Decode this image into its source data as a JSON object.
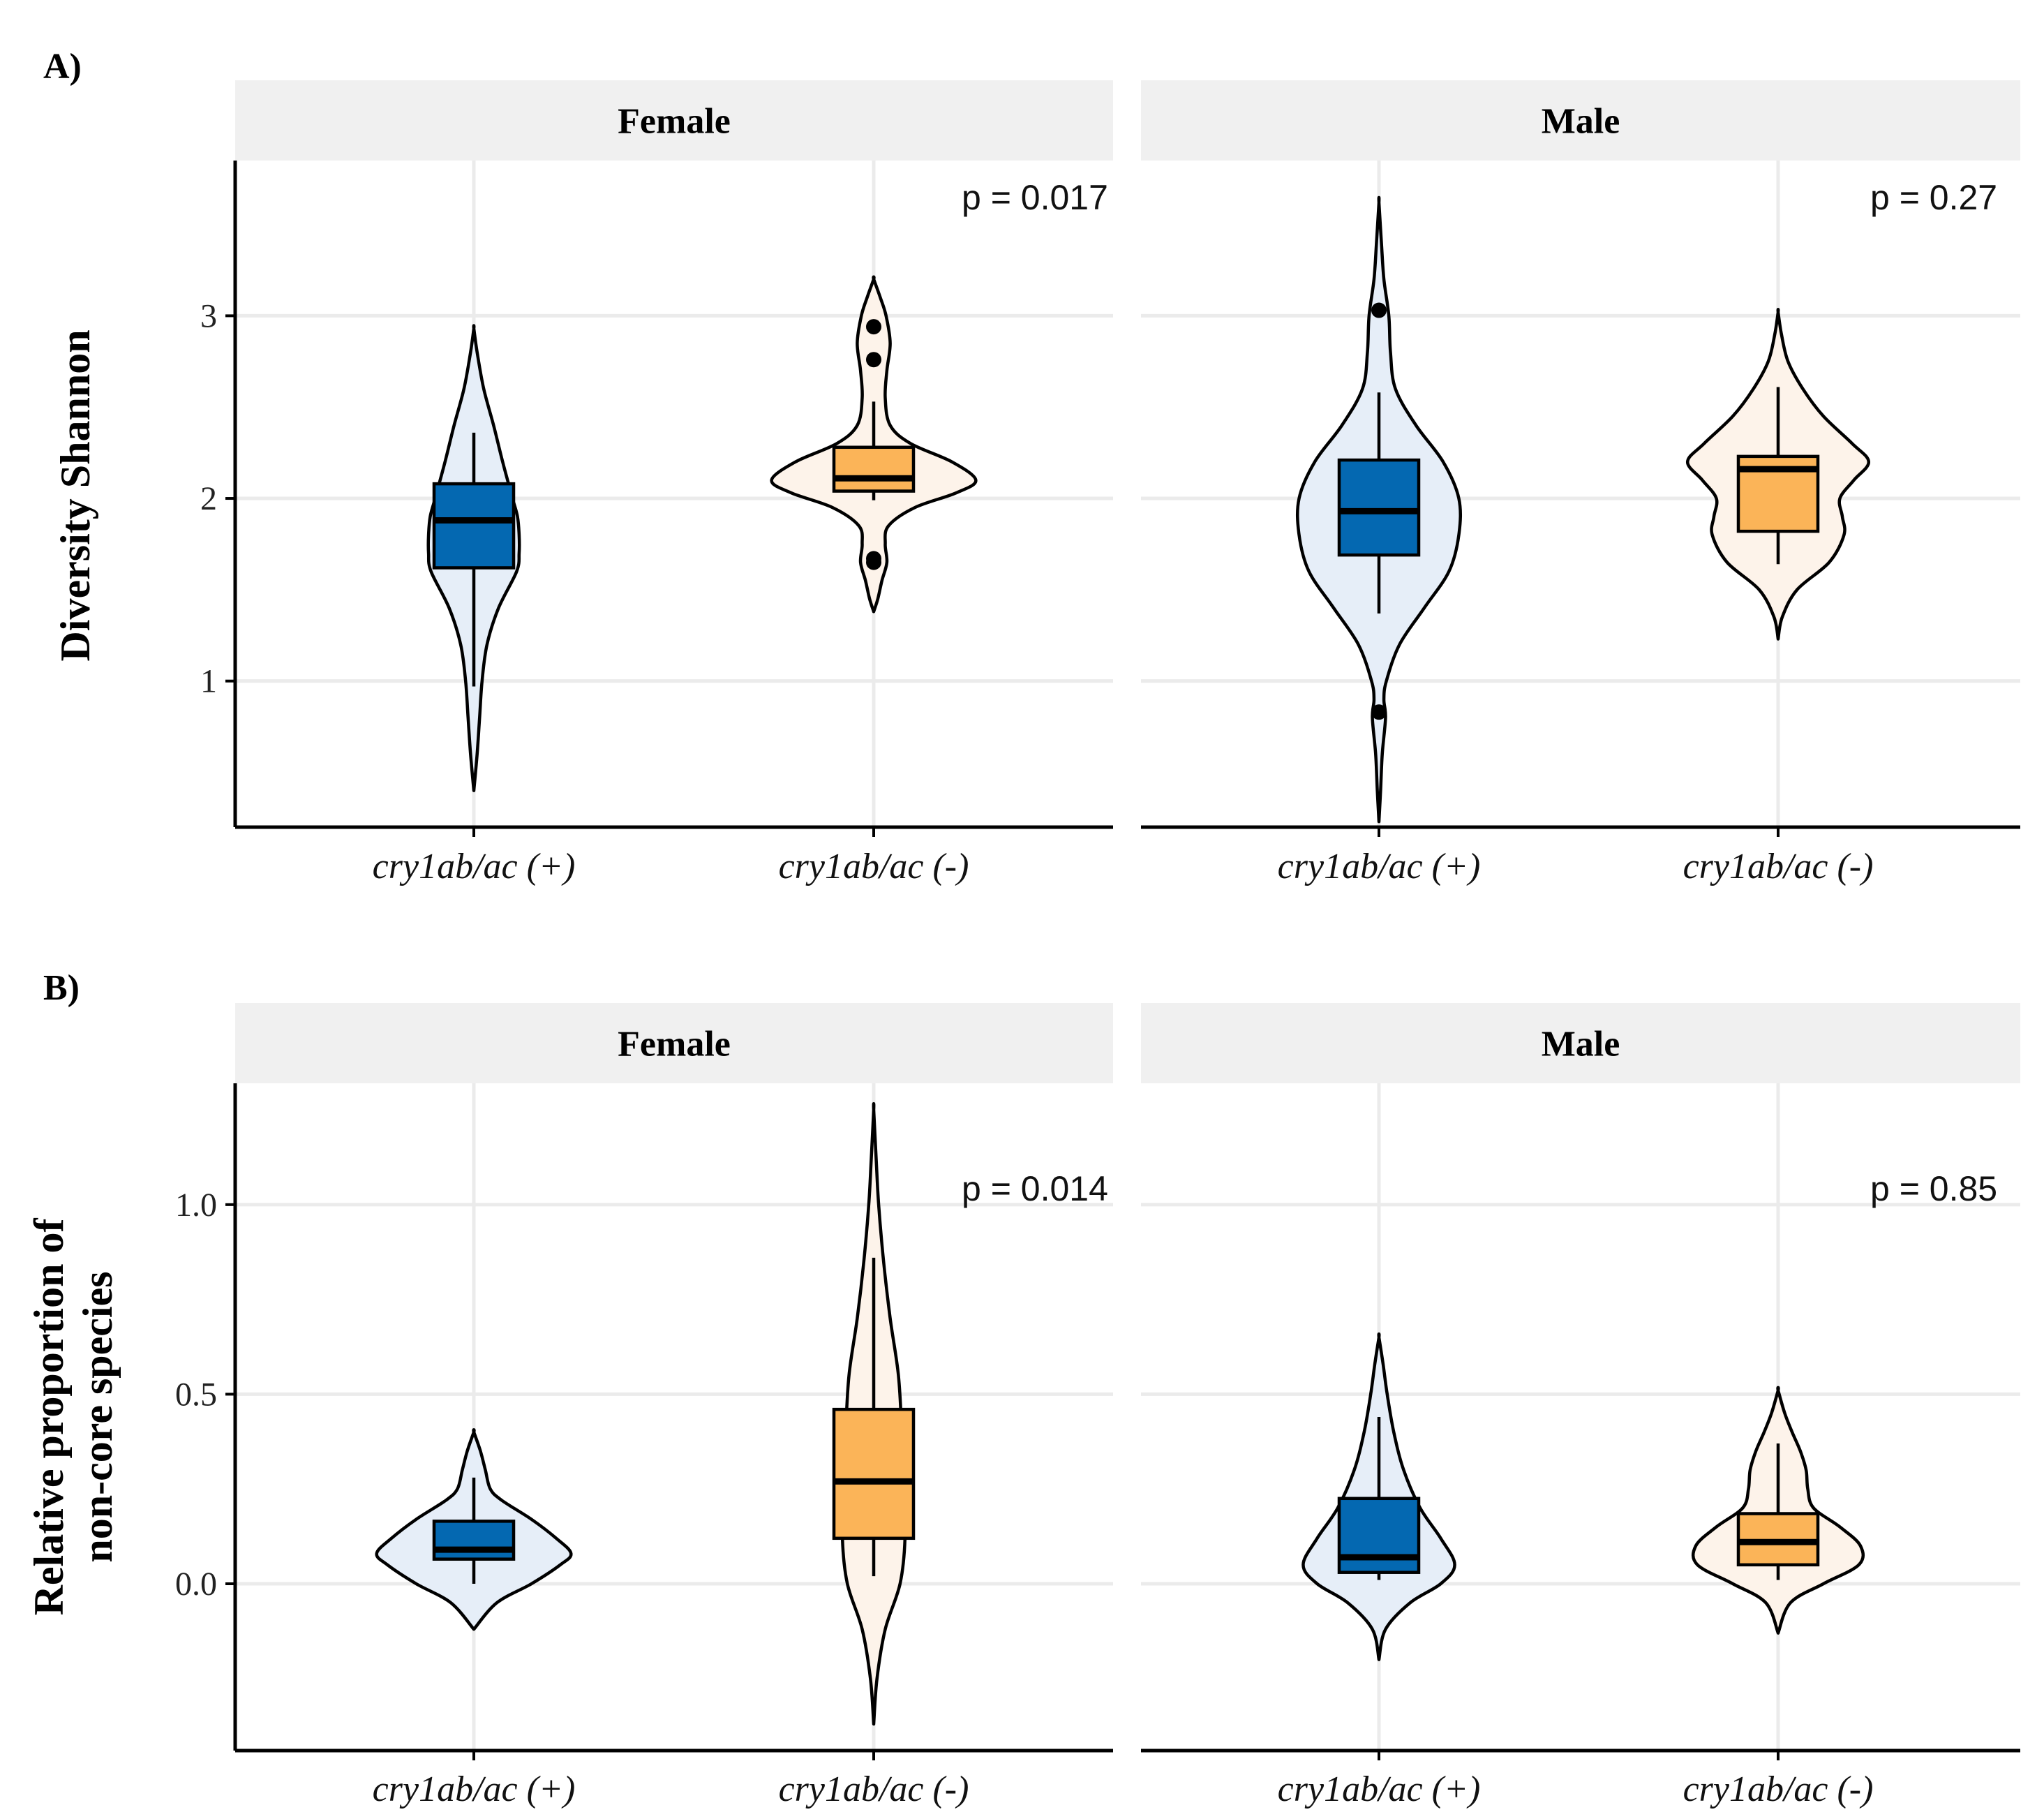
{
  "colors": {
    "plus_box": "#0468b1",
    "plus_violin": "#e6eef8",
    "minus_box": "#fbb458",
    "minus_violin": "#fdf3ea",
    "strip_bg": "#f0f0f0",
    "grid": "#ebebeb",
    "ink": "#000000"
  },
  "chart_data": [
    {
      "type": "violin",
      "panel_label": "A)",
      "ylabel": [
        "Diversity Shannon"
      ],
      "ylim": [
        0.2,
        3.85
      ],
      "yticks": [
        1,
        2,
        3
      ],
      "ytick_labels": [
        "1",
        "2",
        "3"
      ],
      "categories": [
        "cry1ab/ac (+)",
        "cry1ab/ac (-)"
      ],
      "facets": [
        {
          "name": "Female",
          "pvalue": "p = 0.017",
          "groups": [
            {
              "category": "cry1ab/ac (+)",
              "color_key": "plus",
              "box": {
                "lower_whisker": 0.97,
                "q1": 1.62,
                "median": 1.88,
                "q3": 2.08,
                "upper_whisker": 2.36
              },
              "outliers": [],
              "violin": {
                "y": [
                  0.4,
                  0.6,
                  0.8,
                  1.0,
                  1.2,
                  1.4,
                  1.6,
                  1.7,
                  1.8,
                  1.9,
                  2.0,
                  2.2,
                  2.4,
                  2.6,
                  2.8,
                  2.93
                ],
                "hw": [
                  0.0,
                  0.04,
                  0.07,
                  0.1,
                  0.16,
                  0.3,
                  0.52,
                  0.55,
                  0.55,
                  0.53,
                  0.47,
                  0.35,
                  0.24,
                  0.12,
                  0.04,
                  0.0
                ]
              }
            },
            {
              "category": "cry1ab/ac (-)",
              "color_key": "minus",
              "box": {
                "lower_whisker": 1.99,
                "q1": 2.04,
                "median": 2.11,
                "q3": 2.28,
                "upper_whisker": 2.53
              },
              "outliers": [
                2.94,
                2.76,
                1.67,
                1.65
              ],
              "violin": {
                "y": [
                  1.38,
                  1.45,
                  1.55,
                  1.65,
                  1.75,
                  1.85,
                  1.95,
                  2.03,
                  2.1,
                  2.2,
                  2.3,
                  2.4,
                  2.55,
                  2.7,
                  2.85,
                  3.0,
                  3.1,
                  3.2
                ],
                "hw": [
                  0.0,
                  0.05,
                  0.1,
                  0.16,
                  0.14,
                  0.18,
                  0.5,
                  1.0,
                  1.24,
                  0.95,
                  0.45,
                  0.2,
                  0.14,
                  0.16,
                  0.2,
                  0.15,
                  0.08,
                  0.0
                ]
              }
            }
          ]
        },
        {
          "name": "Male",
          "pvalue": "p = 0.27",
          "groups": [
            {
              "category": "cry1ab/ac (+)",
              "color_key": "plus",
              "box": {
                "lower_whisker": 1.37,
                "q1": 1.69,
                "median": 1.93,
                "q3": 2.21,
                "upper_whisker": 2.58
              },
              "outliers": [
                3.03,
                0.83
              ],
              "violin": {
                "y": [
                  0.23,
                  0.4,
                  0.6,
                  0.8,
                  0.9,
                  1.0,
                  1.2,
                  1.4,
                  1.6,
                  1.8,
                  2.0,
                  2.2,
                  2.4,
                  2.6,
                  2.8,
                  3.0,
                  3.2,
                  3.4,
                  3.62
                ],
                "hw": [
                  0.0,
                  0.02,
                  0.04,
                  0.08,
                  0.06,
                  0.09,
                  0.25,
                  0.55,
                  0.85,
                  0.97,
                  0.97,
                  0.78,
                  0.45,
                  0.2,
                  0.14,
                  0.12,
                  0.06,
                  0.03,
                  0.0
                ]
              }
            },
            {
              "category": "cry1ab/ac (-)",
              "color_key": "minus",
              "box": {
                "lower_whisker": 1.64,
                "q1": 1.82,
                "median": 2.16,
                "q3": 2.23,
                "upper_whisker": 2.61
              },
              "outliers": [],
              "violin": {
                "y": [
                  1.23,
                  1.35,
                  1.5,
                  1.65,
                  1.8,
                  1.9,
                  2.0,
                  2.1,
                  2.2,
                  2.3,
                  2.45,
                  2.6,
                  2.75,
                  2.9,
                  3.02
                ],
                "hw": [
                  0.0,
                  0.05,
                  0.23,
                  0.62,
                  0.8,
                  0.78,
                  0.75,
                  0.92,
                  1.1,
                  0.9,
                  0.55,
                  0.3,
                  0.12,
                  0.04,
                  0.0
                ]
              }
            }
          ]
        }
      ]
    },
    {
      "type": "violin",
      "panel_label": "B)",
      "ylabel": [
        "Relative proportion of",
        "non-core species"
      ],
      "ylim": [
        -0.44,
        1.32
      ],
      "yticks": [
        0.0,
        0.5,
        1.0
      ],
      "ytick_labels": [
        "0.0",
        "0.5",
        "1.0"
      ],
      "categories": [
        "cry1ab/ac (+)",
        "cry1ab/ac (-)"
      ],
      "facets": [
        {
          "name": "Female",
          "pvalue": "p = 0.014",
          "groups": [
            {
              "category": "cry1ab/ac (+)",
              "color_key": "plus",
              "box": {
                "lower_whisker": 0.0,
                "q1": 0.065,
                "median": 0.09,
                "q3": 0.165,
                "upper_whisker": 0.28
              },
              "outliers": [],
              "violin": {
                "y": [
                  -0.12,
                  -0.05,
                  0.0,
                  0.05,
                  0.08,
                  0.12,
                  0.17,
                  0.22,
                  0.25,
                  0.3,
                  0.35,
                  0.4
                ],
                "hw": [
                  0.0,
                  0.28,
                  0.7,
                  1.05,
                  1.18,
                  1.0,
                  0.7,
                  0.34,
                  0.2,
                  0.14,
                  0.08,
                  0.0
                ]
              }
            },
            {
              "category": "cry1ab/ac (-)",
              "color_key": "minus",
              "box": {
                "lower_whisker": 0.02,
                "q1": 0.12,
                "median": 0.27,
                "q3": 0.46,
                "upper_whisker": 0.86
              },
              "outliers": [],
              "violin": {
                "y": [
                  -0.37,
                  -0.25,
                  -0.12,
                  0.0,
                  0.12,
                  0.25,
                  0.4,
                  0.55,
                  0.7,
                  0.85,
                  1.0,
                  1.12,
                  1.25
                ],
                "hw": [
                  0.0,
                  0.04,
                  0.14,
                  0.32,
                  0.38,
                  0.36,
                  0.34,
                  0.3,
                  0.2,
                  0.12,
                  0.06,
                  0.03,
                  0.0
                ]
              }
            }
          ]
        },
        {
          "name": "Male",
          "pvalue": "p = 0.85",
          "groups": [
            {
              "category": "cry1ab/ac (+)",
              "color_key": "plus",
              "box": {
                "lower_whisker": 0.01,
                "q1": 0.03,
                "median": 0.07,
                "q3": 0.225,
                "upper_whisker": 0.44
              },
              "outliers": [],
              "violin": {
                "y": [
                  -0.2,
                  -0.12,
                  -0.05,
                  0.0,
                  0.05,
                  0.12,
                  0.2,
                  0.3,
                  0.4,
                  0.5,
                  0.58,
                  0.65
                ],
                "hw": [
                  0.0,
                  0.08,
                  0.38,
                  0.75,
                  0.92,
                  0.75,
                  0.5,
                  0.3,
                  0.18,
                  0.1,
                  0.05,
                  0.0
                ]
              }
            },
            {
              "category": "cry1ab/ac (-)",
              "color_key": "minus",
              "box": {
                "lower_whisker": 0.01,
                "q1": 0.05,
                "median": 0.11,
                "q3": 0.185,
                "upper_whisker": 0.37
              },
              "outliers": [],
              "violin": {
                "y": [
                  -0.13,
                  -0.05,
                  0.0,
                  0.05,
                  0.1,
                  0.15,
                  0.2,
                  0.25,
                  0.3,
                  0.35,
                  0.4,
                  0.45,
                  0.51
                ],
                "hw": [
                  0.0,
                  0.15,
                  0.55,
                  0.98,
                  1.0,
                  0.75,
                  0.43,
                  0.36,
                  0.34,
                  0.27,
                  0.17,
                  0.08,
                  0.0
                ]
              }
            }
          ]
        }
      ]
    }
  ]
}
